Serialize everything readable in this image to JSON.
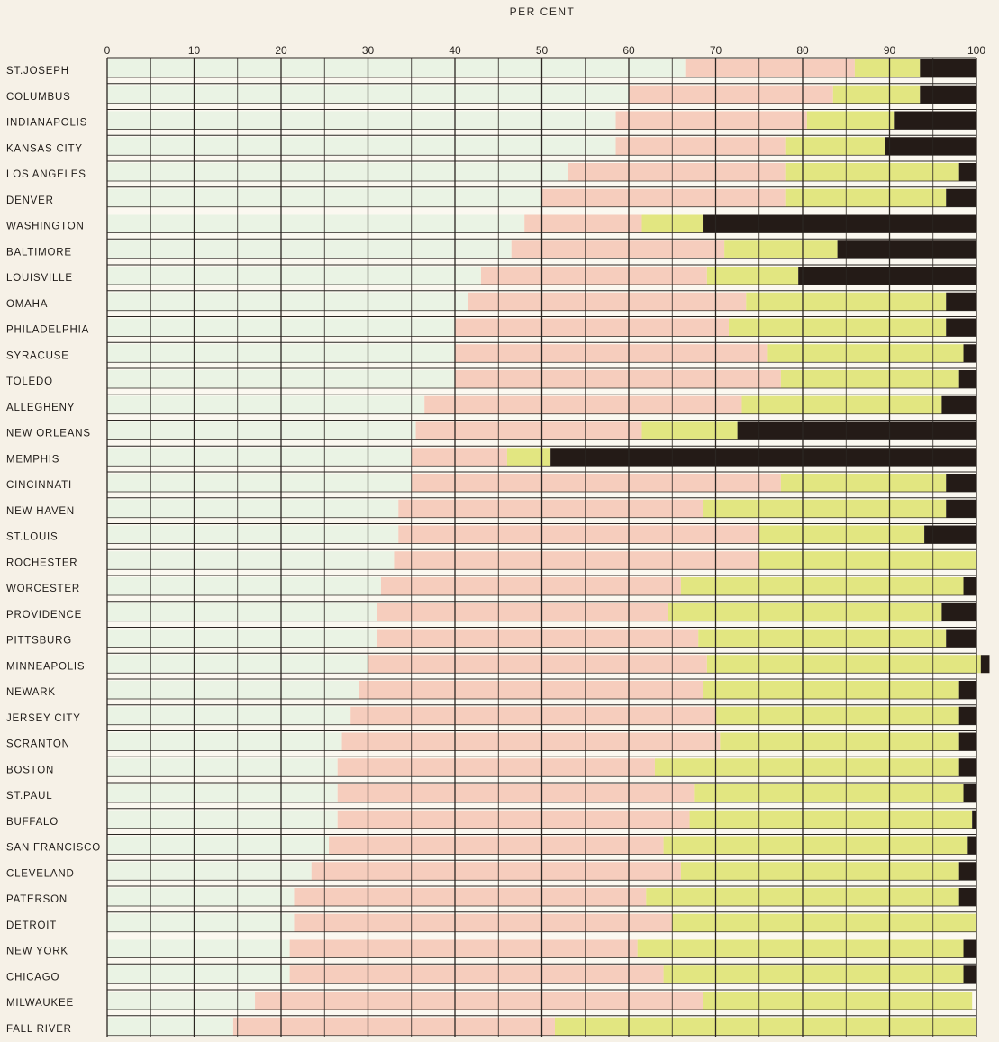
{
  "chart_data": {
    "type": "bar",
    "orientation": "horizontal",
    "stacked": true,
    "title": "PER CENT",
    "xlabel": "",
    "ylabel": "",
    "xlim": [
      0,
      100
    ],
    "x_ticks": [
      "0",
      "10",
      "20",
      "30",
      "40",
      "50",
      "60",
      "70",
      "80",
      "90",
      "100"
    ],
    "grid": true,
    "legend": "none",
    "categories": [
      "ST.JOSEPH",
      "COLUMBUS",
      "INDIANAPOLIS",
      "KANSAS CITY",
      "LOS ANGELES",
      "DENVER",
      "WASHINGTON",
      "BALTIMORE",
      "LOUISVILLE",
      "OMAHA",
      "PHILADELPHIA",
      "SYRACUSE",
      "TOLEDO",
      "ALLEGHENY",
      "NEW ORLEANS",
      "MEMPHIS",
      "CINCINNATI",
      "NEW HAVEN",
      "ST.LOUIS",
      "ROCHESTER",
      "WORCESTER",
      "PROVIDENCE",
      "PITTSBURG",
      "MINNEAPOLIS",
      "NEWARK",
      "JERSEY CITY",
      "SCRANTON",
      "BOSTON",
      "ST.PAUL",
      "BUFFALO",
      "SAN FRANCISCO",
      "CLEVELAND",
      "PATERSON",
      "DETROIT",
      "NEW YORK",
      "CHICAGO",
      "MILWAUKEE",
      "FALL RIVER"
    ],
    "series": [
      {
        "color": "#eaf3e4",
        "values": [
          66.5,
          60,
          58.5,
          58.5,
          53,
          50,
          48,
          46.5,
          43,
          41.5,
          40,
          40,
          40,
          36.5,
          35.5,
          35,
          35,
          33.5,
          33.5,
          33,
          31.5,
          31,
          31,
          30,
          29,
          28,
          27,
          26.5,
          26.5,
          26.5,
          25.5,
          23.5,
          21.5,
          21.5,
          21,
          21,
          17,
          14.5
        ]
      },
      {
        "color": "#f6cdbd",
        "values": [
          19.5,
          23.5,
          22,
          19.5,
          25,
          28,
          13.5,
          24.5,
          26,
          32,
          31.5,
          36,
          37.5,
          36.5,
          26,
          11,
          42.5,
          35,
          41.5,
          42,
          34.5,
          33.5,
          37,
          39,
          39.5,
          42,
          43.5,
          36.5,
          41,
          40.5,
          38.5,
          42.5,
          40.5,
          43.5,
          40,
          43,
          51.5,
          37
        ]
      },
      {
        "color": "#e2e681",
        "values": [
          7.5,
          10,
          10,
          11.5,
          20,
          18.5,
          7,
          13,
          10.5,
          23,
          25,
          22.5,
          20.5,
          23,
          11,
          5,
          19,
          28,
          19,
          25,
          32.5,
          31.5,
          28.5,
          31.5,
          29.5,
          28,
          27.5,
          35,
          31,
          32.5,
          35,
          32,
          36,
          35,
          37.5,
          34.5,
          31,
          48.5
        ]
      },
      {
        "color": "#241b17",
        "values": [
          6.5,
          6.5,
          9.5,
          10.5,
          2,
          3.5,
          31.5,
          16,
          20.5,
          3.5,
          3.5,
          1.5,
          2,
          4,
          27.5,
          49,
          3.5,
          3.5,
          6,
          0,
          1.5,
          4,
          3.5,
          1,
          2,
          2,
          2,
          2,
          1.5,
          0.5,
          1,
          2,
          2,
          0,
          1.5,
          1.5,
          0,
          0
        ]
      }
    ]
  }
}
